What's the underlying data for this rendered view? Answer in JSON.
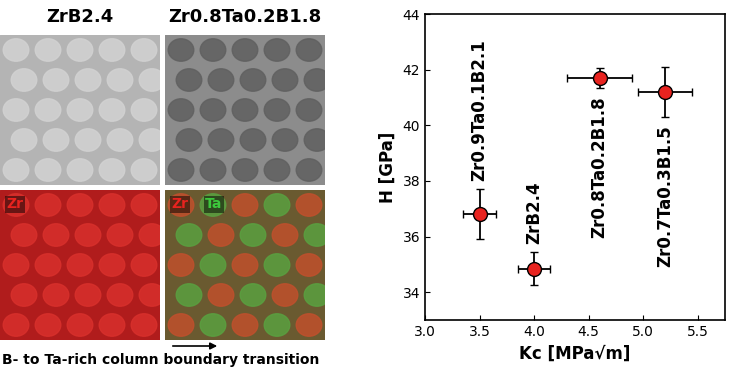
{
  "chart_data": {
    "type": "scatter",
    "xlabel": "Kc [MPa√m]",
    "ylabel": "H [GPa]",
    "x": [
      3.5,
      4.0,
      4.6,
      5.2
    ],
    "values": [
      36.8,
      34.85,
      41.7,
      41.2
    ],
    "xerr": [
      0.15,
      0.15,
      0.3,
      0.25
    ],
    "yerr": [
      0.9,
      0.6,
      0.35,
      0.9
    ],
    "labels": [
      "Zr0.9Ta0.1B2.1",
      "ZrB2.4",
      "Zr0.8Ta0.2B1.8",
      "Zr0.7Ta0.3B1.5"
    ],
    "color": "#e8231f",
    "marker": "circle",
    "xlim": [
      3.0,
      5.75
    ],
    "xticks": [
      3.0,
      3.5,
      4.0,
      4.5,
      5.0,
      5.5
    ],
    "ylim": [
      33,
      44
    ],
    "yticks": [
      34,
      36,
      38,
      40,
      42,
      44
    ]
  },
  "micrographs": {
    "titles": [
      "ZrB2.4",
      "Zr0.8Ta0.2B1.8"
    ],
    "maps": [
      [
        {
          "text": "Zr",
          "color": "#e8231f"
        }
      ],
      [
        {
          "text": "Zr",
          "color": "#e8231f"
        },
        {
          "text": "Ta",
          "color": "#3cc83c"
        }
      ]
    ],
    "caption": "B- to Ta-rich column boundary transition"
  }
}
